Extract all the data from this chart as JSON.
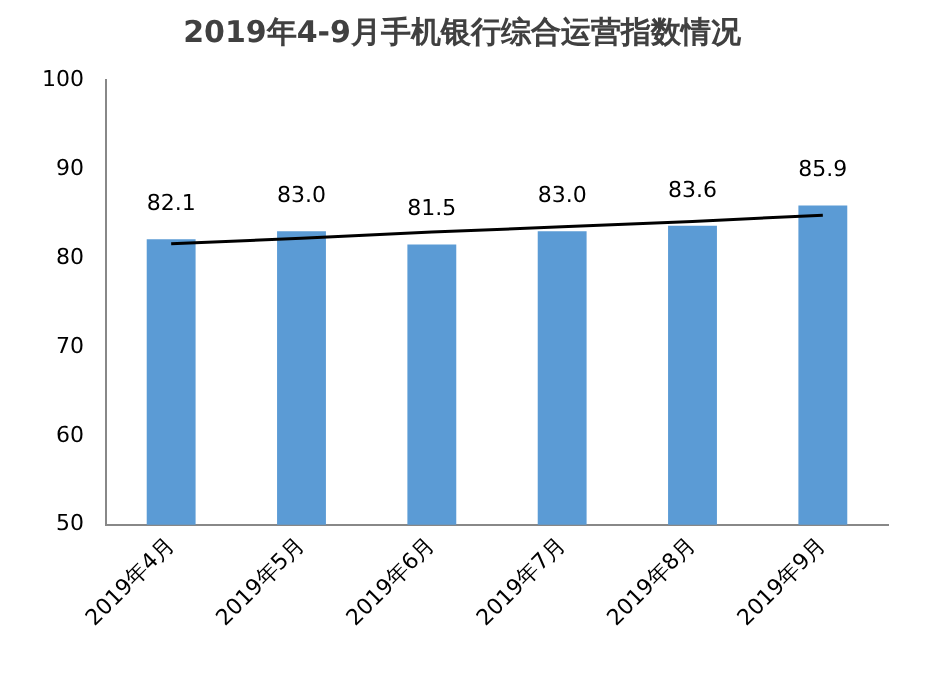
{
  "chart_data": {
    "type": "bar",
    "title": "2019年4-9月手机银行综合运营指数情况",
    "categories": [
      "2019年4月",
      "2019年5月",
      "2019年6月",
      "2019年7月",
      "2019年8月",
      "2019年9月"
    ],
    "series": [
      {
        "color": "#5b9bd5",
        "values": [
          82.1,
          83.0,
          81.5,
          83.0,
          83.6,
          85.9
        ],
        "value_labels": [
          "82.1",
          "83.0",
          "81.5",
          "83.0",
          "83.6",
          "85.9"
        ]
      },
      {
        "type": "line",
        "color": "#000000",
        "values": [
          81.6,
          82.2,
          82.9,
          83.5,
          84.1,
          84.8
        ],
        "marker": "none"
      }
    ],
    "ylim": [
      50,
      100
    ],
    "yticks": [
      50,
      60,
      70,
      80,
      90,
      100
    ],
    "grid": false,
    "legend": false
  }
}
